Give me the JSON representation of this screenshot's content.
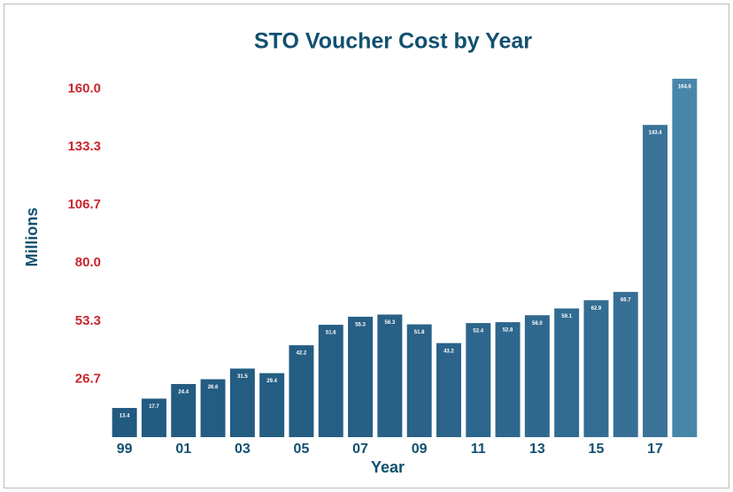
{
  "chart_data": {
    "type": "bar",
    "title": "STO Voucher Cost by Year",
    "xlabel": "Year",
    "ylabel": "Millions",
    "categories": [
      "99",
      null,
      "01",
      null,
      "03",
      null,
      "05",
      null,
      "07",
      null,
      "09",
      null,
      "11",
      null,
      "13",
      null,
      "15",
      null,
      "17",
      null
    ],
    "values": [
      13.4,
      17.7,
      24.4,
      26.6,
      31.5,
      29.4,
      42.2,
      51.6,
      55.3,
      56.3,
      51.8,
      43.2,
      52.4,
      52.8,
      56.0,
      59.1,
      62.9,
      66.7,
      143.4,
      164.6
    ],
    "value_labels": [
      "13.4",
      "17.7",
      "24.4",
      "26.6",
      "31.5",
      "29.4",
      "42.2",
      "51.6",
      "55.3",
      "56.3",
      "51.8",
      "43.2",
      "52.4",
      "52.8",
      "56.0",
      "59.1",
      "62.9",
      "66.7",
      "143.4",
      "164.6"
    ],
    "colors": [
      "#225a80",
      "#235b81",
      "#235b81",
      "#245c82",
      "#245c82",
      "#255d83",
      "#255d83",
      "#265e84",
      "#275f85",
      "#286086",
      "#2a6288",
      "#2b638a",
      "#2d668c",
      "#2e678d",
      "#30698f",
      "#326b91",
      "#346d93",
      "#376f95",
      "#3a7398",
      "#4886a9"
    ],
    "ylim": [
      0,
      164.6
    ],
    "yticks": [
      26.7,
      53.3,
      {
        "value": 80,
        "label": "80.0"
      },
      106.7,
      133.3,
      {
        "value": 160,
        "label": "160.0"
      }
    ],
    "grid": false
  }
}
